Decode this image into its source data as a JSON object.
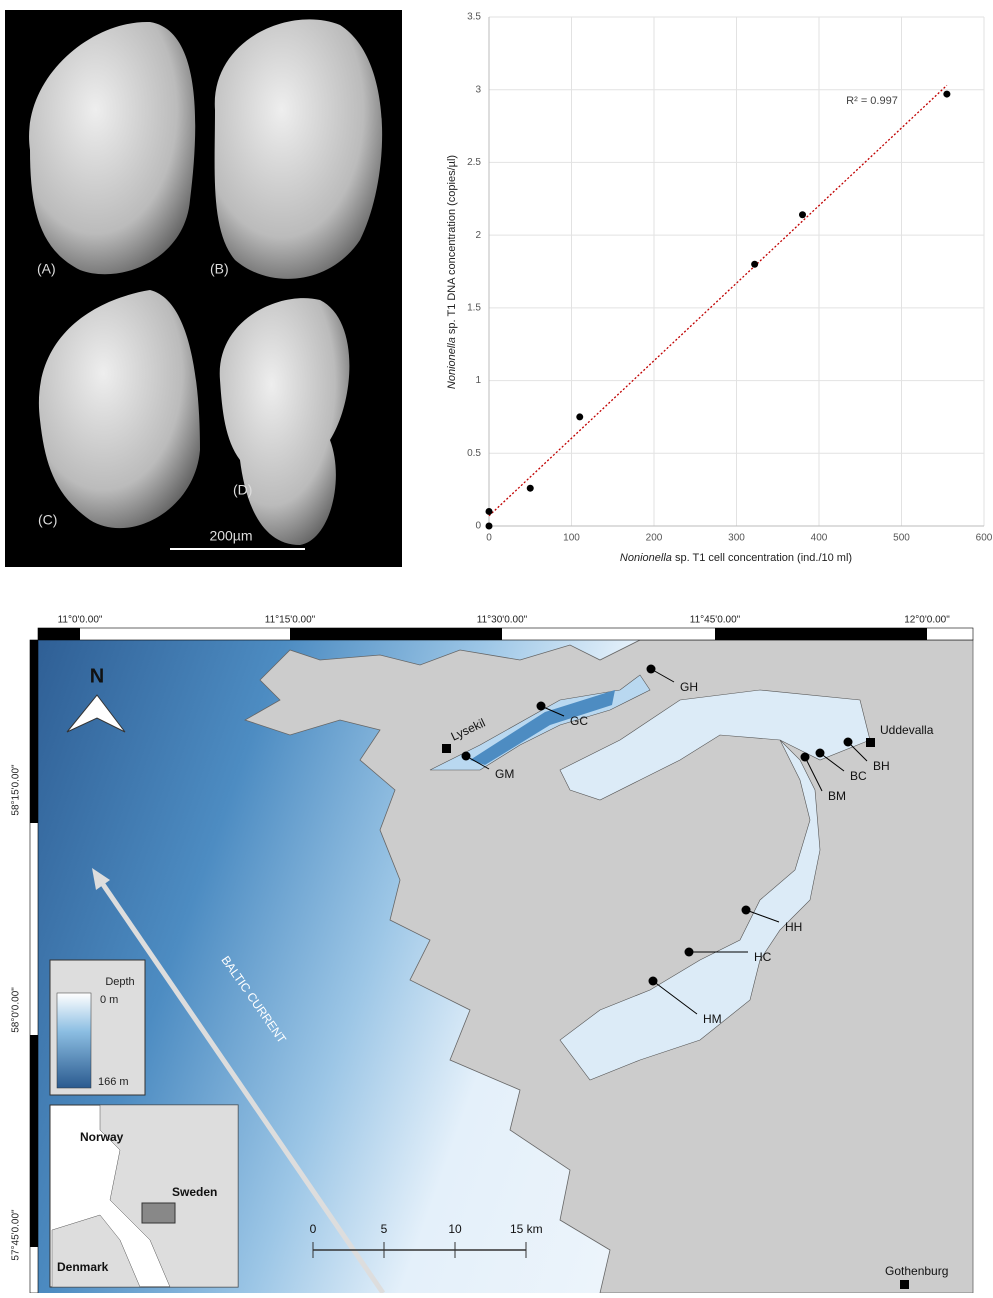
{
  "sem_panel": {
    "labels": [
      "(A)",
      "(B)",
      "(C)",
      "(D)"
    ],
    "scale_bar": "200µm"
  },
  "chart_data": {
    "type": "scatter",
    "x_label": {
      "italic": "Nonionella",
      "text": "sp. T1 cell concentration (ind./10 ml)"
    },
    "y_label": {
      "italic": "Nonionella",
      "text": "sp. T1 DNA concentration (copies/µl)"
    },
    "x": [
      0,
      0,
      50,
      110,
      322,
      380,
      555
    ],
    "values": [
      0,
      0.1,
      0.26,
      0.75,
      1.8,
      2.14,
      2.97
    ],
    "color": "#000000",
    "trendline": {
      "x": [
        0,
        555
      ],
      "values": [
        0.07,
        3.03
      ],
      "color": "#c00000",
      "label": "R² = 0.997"
    },
    "xlim": [
      0,
      600
    ],
    "xticks": [
      0,
      100,
      200,
      300,
      400,
      500,
      600
    ],
    "ylim": [
      0,
      3.5
    ],
    "yticks": [
      0,
      0.5,
      1,
      1.5,
      2,
      2.5,
      3,
      3.5
    ],
    "grid": true
  },
  "map": {
    "longitudes": [
      "11°0'0.00\"",
      "11°15'0.00\"",
      "11°30'0.00\"",
      "11°45'0.00\"",
      "12°0'0.00\""
    ],
    "latitudes": [
      "58°15'0.00\"",
      "58°0'0.00\"",
      "57°45'0.00\""
    ],
    "north": "N",
    "current": "BALTIC CURRENT",
    "legend": {
      "title": "Depth",
      "top": "0 m",
      "bottom": "166 m"
    },
    "inset": [
      "Norway",
      "Sweden",
      "Denmark"
    ],
    "scale": [
      "0",
      "5",
      "10",
      "15 km"
    ],
    "towns": [
      "Lysekil",
      "Uddevalla",
      "Gothenburg"
    ],
    "stations": [
      "GH",
      "GC",
      "GM",
      "BM",
      "BC",
      "BH",
      "HH",
      "HC",
      "HM"
    ]
  }
}
